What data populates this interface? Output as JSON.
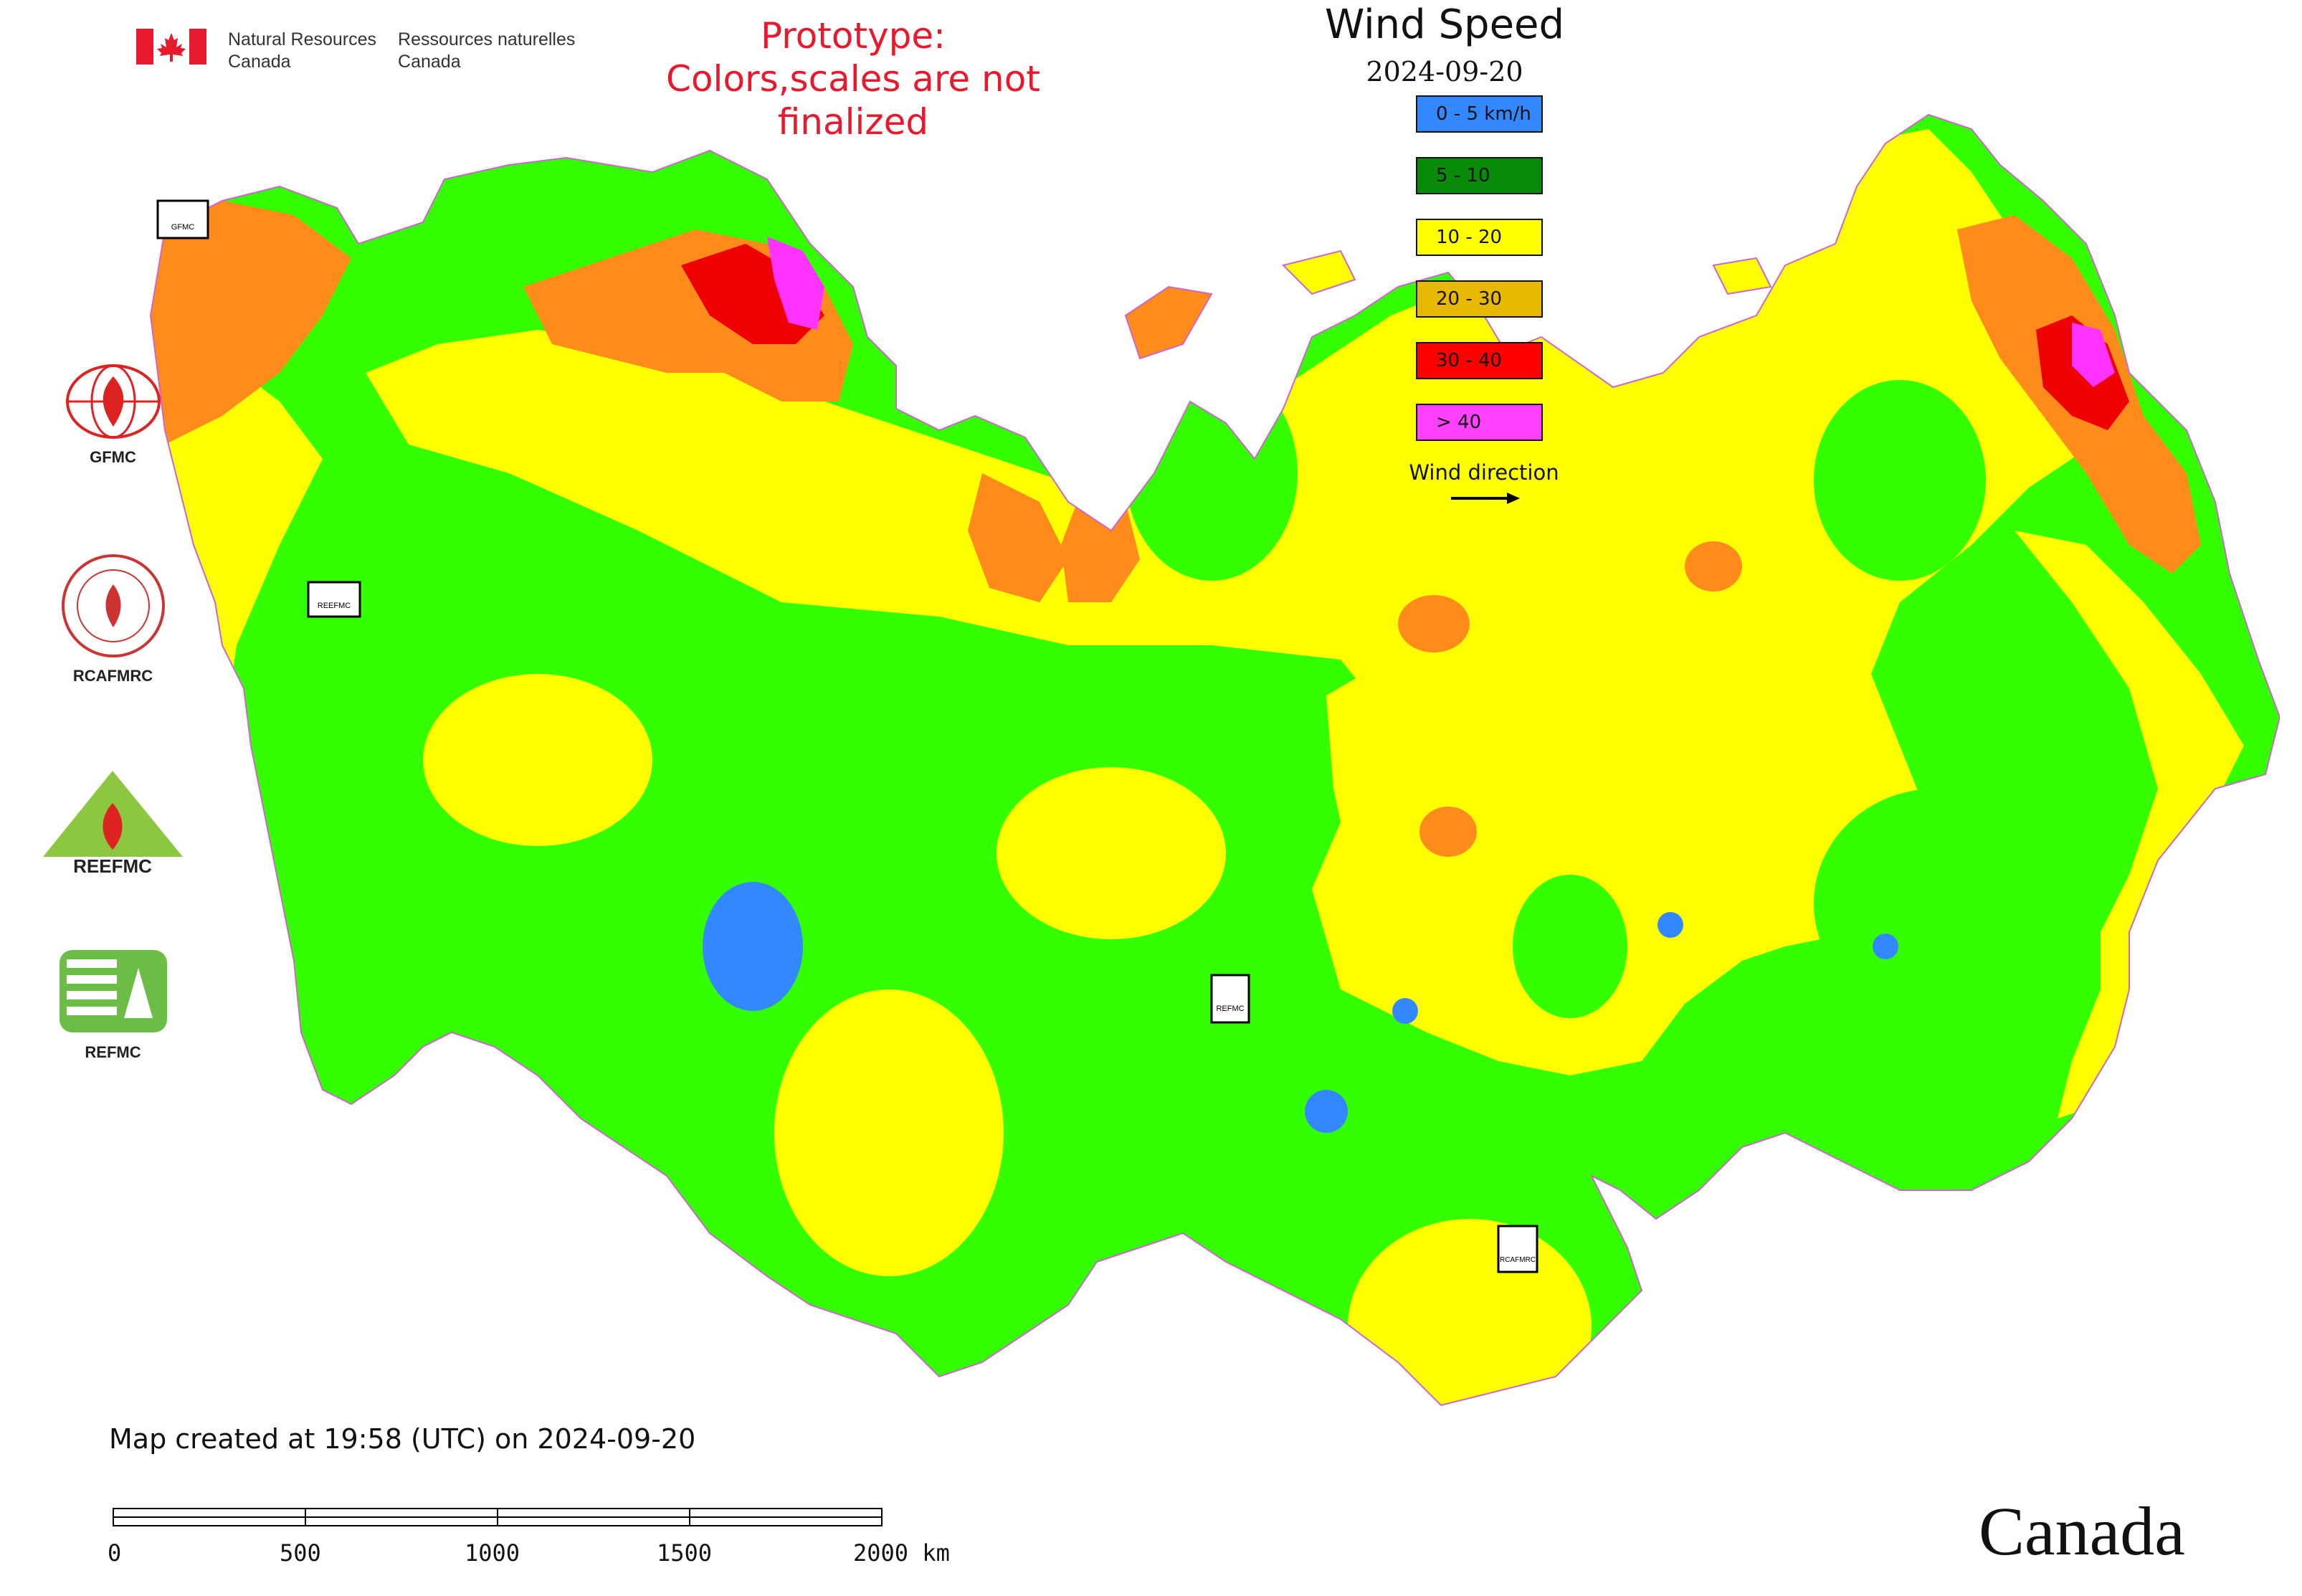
{
  "header": {
    "gov_en_line1": "Natural Resources",
    "gov_en_line2": "Canada",
    "gov_fr_line1": "Ressources naturelles",
    "gov_fr_line2": "Canada",
    "prototype_line1": "Prototype:",
    "prototype_line2": "Colors,scales are not finalized"
  },
  "legend": {
    "title": "Wind Speed",
    "date": "2024-09-20",
    "items": [
      {
        "label": "0 - 5 km/h",
        "color": "#3388ff"
      },
      {
        "label": "5 - 10",
        "color": "#0a8a0a"
      },
      {
        "label": "10 - 20",
        "color": "#ffff00"
      },
      {
        "label": "20 - 30",
        "color": "#e6b800"
      },
      {
        "label": "30 - 40",
        "color": "#ff0000"
      },
      {
        "label": "> 40",
        "color": "#ff40ff"
      }
    ],
    "wind_direction_label": "Wind direction"
  },
  "map_colors": {
    "green": "#33ff00",
    "yellow": "#ffff00",
    "orange": "#ff8c1a",
    "red": "#ee0000",
    "magenta": "#ff33ff",
    "blue": "#3388ff"
  },
  "logos": [
    {
      "name": "GFMC"
    },
    {
      "name": "RCAFMRC"
    },
    {
      "name": "REEFMC"
    },
    {
      "name": "REFMC"
    }
  ],
  "map_markers": [
    "GFMC",
    "REEFMC",
    "REFMC",
    "RCAFMRC"
  ],
  "footer": {
    "created": "Map created at 19:58 (UTC) on 2024-09-20",
    "scale_labels": [
      "0",
      "500",
      "1000",
      "1500",
      "2000 km"
    ]
  },
  "wordmark": "Canada"
}
